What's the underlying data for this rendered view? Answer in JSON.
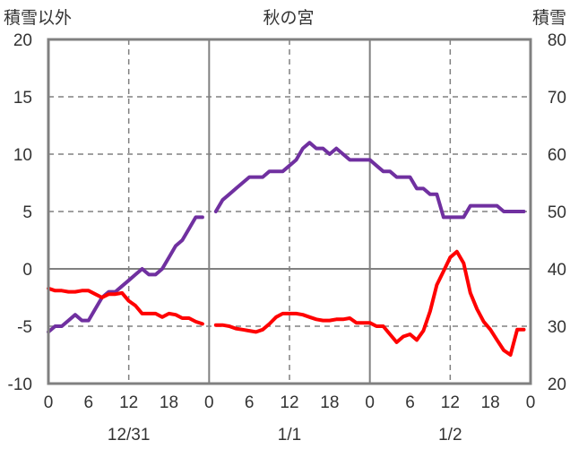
{
  "chart_data": {
    "type": "line",
    "title": "秋の宮",
    "left_axis_label": "積雪以外",
    "right_axis_label": "積雪",
    "left_ylim": [
      -10,
      20
    ],
    "left_yticks": [
      "20",
      "15",
      "10",
      "5",
      "0",
      "-5",
      "-10"
    ],
    "right_ylim": [
      20,
      80
    ],
    "right_yticks": [
      "80",
      "70",
      "60",
      "50",
      "40",
      "30",
      "20"
    ],
    "x_hours_range": [
      0,
      72
    ],
    "x_tick_labels": [
      "0",
      "6",
      "12",
      "18",
      "0",
      "6",
      "12",
      "18",
      "0",
      "6",
      "12",
      "18",
      "0"
    ],
    "x_day_labels": [
      "12/31",
      "1/1",
      "1/2"
    ],
    "grid": true,
    "colors": {
      "snow": "#7030a0",
      "temperature": "#ff0000",
      "frame": "#808080",
      "grid": "#808080"
    },
    "series": [
      {
        "axis": "right",
        "color": "#7030a0",
        "segments": [
          {
            "x": [
              0,
              1,
              2,
              3,
              4,
              5,
              6,
              7,
              8,
              9,
              10,
              11,
              12,
              13,
              14,
              15,
              16,
              17,
              18,
              19,
              20,
              21,
              22,
              23
            ],
            "values": [
              29,
              30,
              30,
              31,
              32,
              31,
              31,
              33,
              35,
              36,
              36,
              37,
              38,
              39,
              40,
              39,
              39,
              40,
              42,
              44,
              45,
              47,
              49,
              49
            ]
          },
          {
            "x": [
              25,
              26,
              27,
              28,
              29,
              30,
              31,
              32,
              33,
              34,
              35,
              36,
              37,
              38,
              39,
              40,
              41,
              42,
              43,
              44,
              45,
              46,
              47,
              48,
              49,
              50,
              51,
              52,
              53,
              54,
              55,
              56,
              57,
              58,
              59,
              60,
              61,
              62,
              63,
              64,
              65,
              66,
              67,
              68,
              69,
              70,
              71
            ],
            "values": [
              50,
              52,
              53,
              54,
              55,
              56,
              56,
              56,
              57,
              57,
              57,
              58,
              59,
              61,
              62,
              61,
              61,
              60,
              61,
              60,
              59,
              59,
              59,
              59,
              58,
              57,
              57,
              56,
              56,
              56,
              54,
              54,
              53,
              53,
              49,
              49,
              49,
              49,
              51,
              51,
              51,
              51,
              51,
              50,
              50,
              50,
              50
            ]
          }
        ]
      },
      {
        "axis": "left",
        "color": "#ff0000",
        "segments": [
          {
            "x": [
              0,
              1,
              2,
              3,
              4,
              5,
              6,
              7,
              8,
              9,
              10,
              11,
              12,
              13,
              14,
              15,
              16,
              17,
              18,
              19,
              20,
              21,
              22,
              23
            ],
            "values": [
              -1.7,
              -1.9,
              -1.9,
              -2.0,
              -2.0,
              -1.9,
              -1.9,
              -2.2,
              -2.5,
              -2.2,
              -2.2,
              -2.1,
              -2.8,
              -3.2,
              -3.9,
              -3.9,
              -3.9,
              -4.2,
              -3.9,
              -4.0,
              -4.3,
              -4.3,
              -4.6,
              -4.8
            ]
          },
          {
            "x": [
              25,
              26,
              27,
              28,
              29,
              30,
              31,
              32,
              33,
              34,
              35,
              36,
              37,
              38,
              39,
              40,
              41,
              42,
              43,
              44,
              45,
              46,
              47,
              48,
              49,
              50,
              51,
              52,
              53,
              54,
              55,
              56,
              57,
              58,
              59,
              60,
              61,
              62,
              63,
              64,
              65,
              66,
              67,
              68,
              69,
              70,
              71
            ],
            "values": [
              -4.9,
              -4.9,
              -5.0,
              -5.2,
              -5.3,
              -5.4,
              -5.5,
              -5.3,
              -4.8,
              -4.2,
              -3.9,
              -3.9,
              -3.9,
              -4.0,
              -4.2,
              -4.4,
              -4.5,
              -4.5,
              -4.4,
              -4.4,
              -4.3,
              -4.7,
              -4.7,
              -4.7,
              -5.0,
              -5.0,
              -5.7,
              -6.4,
              -5.9,
              -5.7,
              -6.2,
              -5.4,
              -3.7,
              -1.4,
              -0.2,
              1.0,
              1.5,
              0.5,
              -2.1,
              -3.5,
              -4.6,
              -5.3,
              -6.2,
              -7.1,
              -7.5,
              -5.3,
              -5.3
            ]
          }
        ]
      }
    ]
  }
}
